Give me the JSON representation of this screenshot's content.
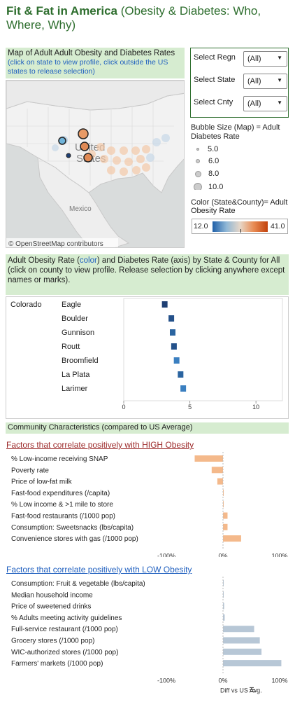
{
  "title": {
    "main": "Fit & Fat in America",
    "sub": "(Obesity & Diabetes: Who, Where, Why)"
  },
  "map_section": {
    "header": "Map of Adult Adult Obesity and Diabetes Rates",
    "subheader": "(click on state to view profile, click outside the US states to release selection)",
    "labels": {
      "united": "United",
      "states": "States",
      "mexico": "Mexico"
    },
    "attribution": "© OpenStreetMap contributors"
  },
  "filters": [
    {
      "label": "Select Regn",
      "value": "(All)"
    },
    {
      "label": "Select State",
      "value": "(All)"
    },
    {
      "label": "Select Cnty",
      "value": "(All)"
    }
  ],
  "size_legend": {
    "title": "Bubble Size (Map) = Adult Diabetes Rate",
    "items": [
      "5.0",
      "6.0",
      "8.0",
      "10.0"
    ]
  },
  "color_legend": {
    "title": "Color (State&County)= Adult Obesity Rate",
    "min": "12.0",
    "max": "41.0",
    "colors": {
      "low": "#1f5fa8",
      "high": "#c2410c"
    }
  },
  "county_section": {
    "header_pre": "Adult Obesity Rate (",
    "header_color": "color",
    "header_post": ") and Diabetes Rate (axis) by State & County for All",
    "subheader": "(click on county to view profile. Release selection by clicking anywhere except names or marks)."
  },
  "chart_data": [
    {
      "type": "scatter",
      "title": "",
      "state": "Colorado",
      "categories": [
        "Eagle",
        "Boulder",
        "Gunnison",
        "Routt",
        "Broomfield",
        "La Plata",
        "Larimer"
      ],
      "values": [
        3.1,
        3.6,
        3.7,
        3.8,
        4.0,
        4.3,
        4.5
      ],
      "colors": [
        "#1e3f73",
        "#24518a",
        "#2a64a0",
        "#24518a",
        "#3a7fc0",
        "#2a64a0",
        "#3a7fc0"
      ],
      "xlim": [
        0,
        12
      ],
      "xticks": [
        "0",
        "5",
        "10"
      ]
    },
    {
      "type": "bar",
      "title": "Factors that correlate positively with HIGH Obesity",
      "categories": [
        "% Low-income receiving SNAP",
        "Poverty rate",
        "Price of low-fat milk",
        "Fast-food expenditures (/capita)",
        "% Low income & >1 mile to store",
        "Fast-food restaurants (/1000 pop)",
        "Consumption: Sweetsnacks (lbs/capita)",
        "Convenience stores with gas (/1000 pop)"
      ],
      "values": [
        -50,
        -20,
        -10,
        0,
        0,
        8,
        8,
        32
      ],
      "bar_color": "#f4b98b",
      "xlim": [
        -140,
        120
      ],
      "xticks": [
        "-100%",
        "0%",
        "100%"
      ],
      "xlabel": "Diff vs US Avg."
    },
    {
      "type": "bar",
      "title": "Factors that correlate positively with LOW Obesity",
      "categories": [
        "Consumption: Fruit & vegetable (lbs/capita)",
        "Median household income",
        "Price of sweetened drinks",
        "% Adults meeting activity guidelines",
        "Full-service restaurant (/1000 pop)",
        "Grocery stores (/1000 pop)",
        "WIC-authorized stores (/1000 pop)",
        "Farmers' markets (/1000 pop)"
      ],
      "values": [
        1,
        1,
        2,
        3,
        55,
        65,
        68,
        103
      ],
      "bar_color": "#b7c7d6",
      "xlim": [
        -140,
        120
      ],
      "xticks": [
        "-100%",
        "0%",
        "100%"
      ],
      "xlabel": "Diff vs US Avg."
    }
  ],
  "community_section": {
    "header": "Community Characteristics (compared to US Average)"
  }
}
